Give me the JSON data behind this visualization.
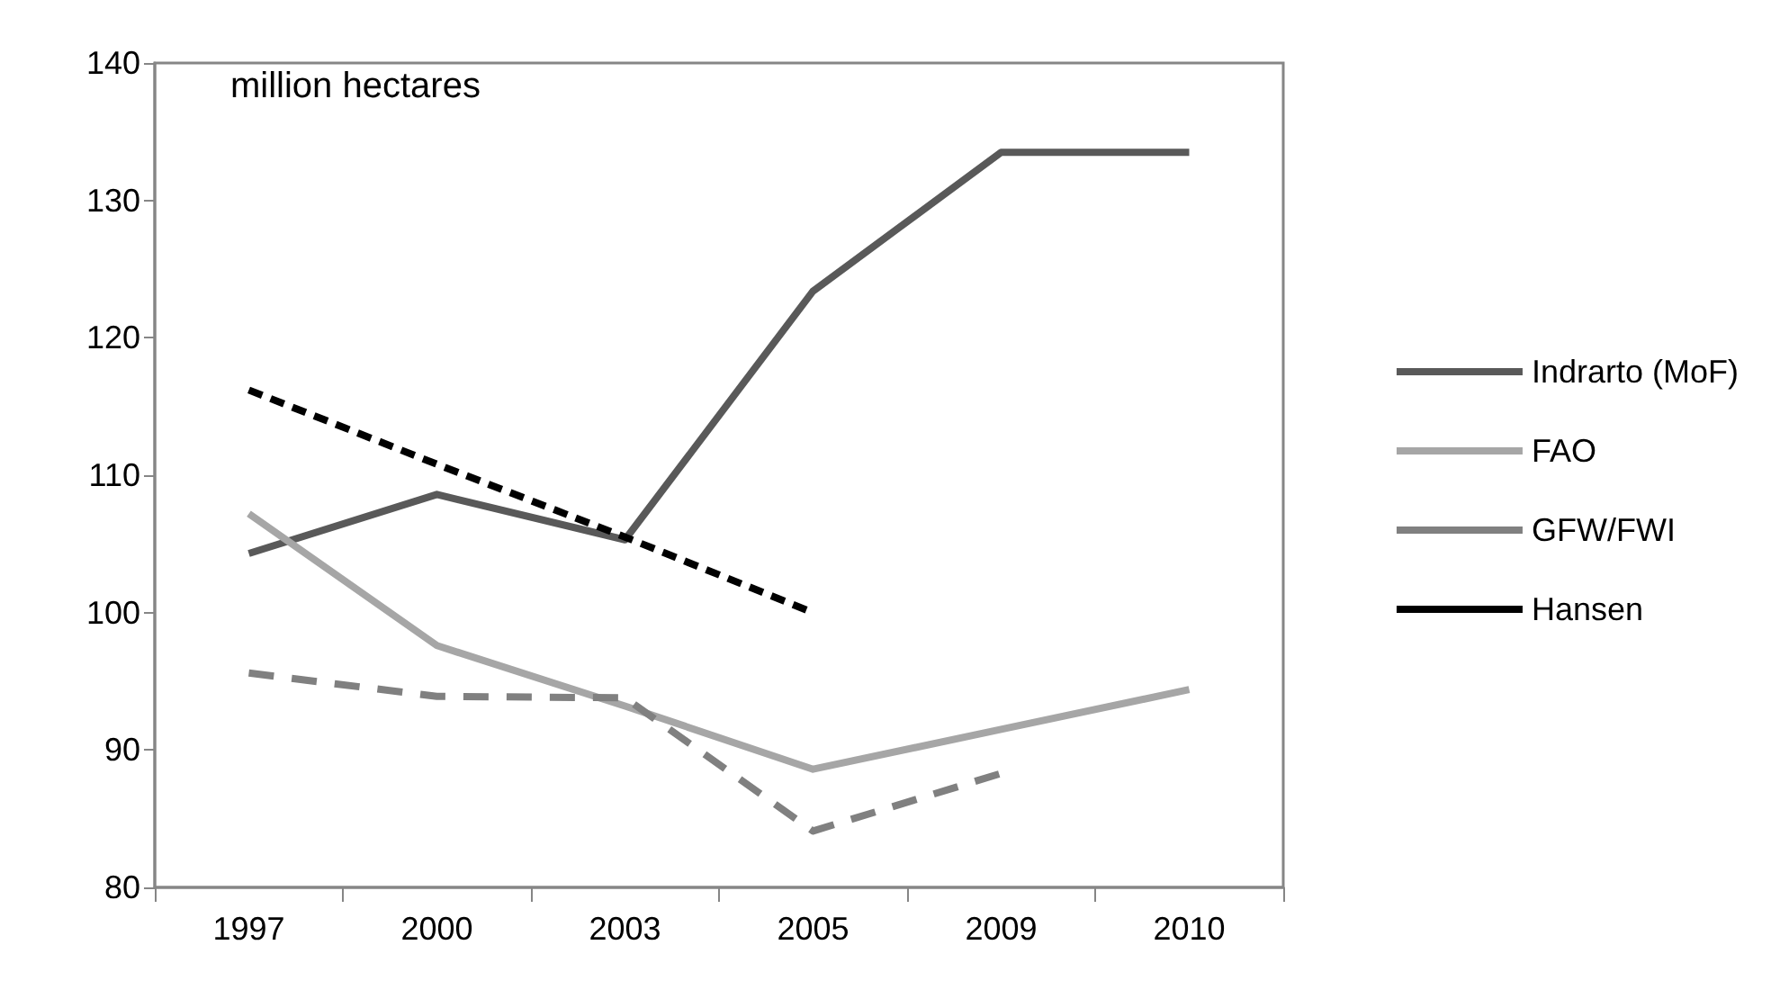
{
  "chart_data": {
    "type": "line",
    "categories": [
      "1997",
      "2000",
      "2003",
      "2005",
      "2009",
      "2010"
    ],
    "series": [
      {
        "name": "Indrarto (MoF)",
        "color": "#595959",
        "line_style": "solid",
        "values": [
          104.3,
          108.6,
          105.3,
          123.4,
          133.5,
          133.5
        ]
      },
      {
        "name": "FAO",
        "color": "#a6a6a6",
        "line_style": "solid",
        "values": [
          107.2,
          97.6,
          93.2,
          88.6,
          91.5,
          94.4
        ]
      },
      {
        "name": "GFW/FWI",
        "color": "#808080",
        "line_style": "dashed",
        "values": [
          95.6,
          93.9,
          93.8,
          84.1,
          88.3,
          null
        ]
      },
      {
        "name": "Hansen",
        "color": "#000000",
        "line_style": "dotted",
        "values": [
          116.2,
          110.8,
          105.5,
          100.0,
          null,
          null
        ]
      }
    ],
    "ylim": [
      80,
      140
    ],
    "yticks": [
      80,
      90,
      100,
      110,
      120,
      130,
      140
    ],
    "grid": false,
    "legend": "right",
    "marker": "none",
    "annotations": [
      {
        "text": "million hectares"
      }
    ]
  }
}
